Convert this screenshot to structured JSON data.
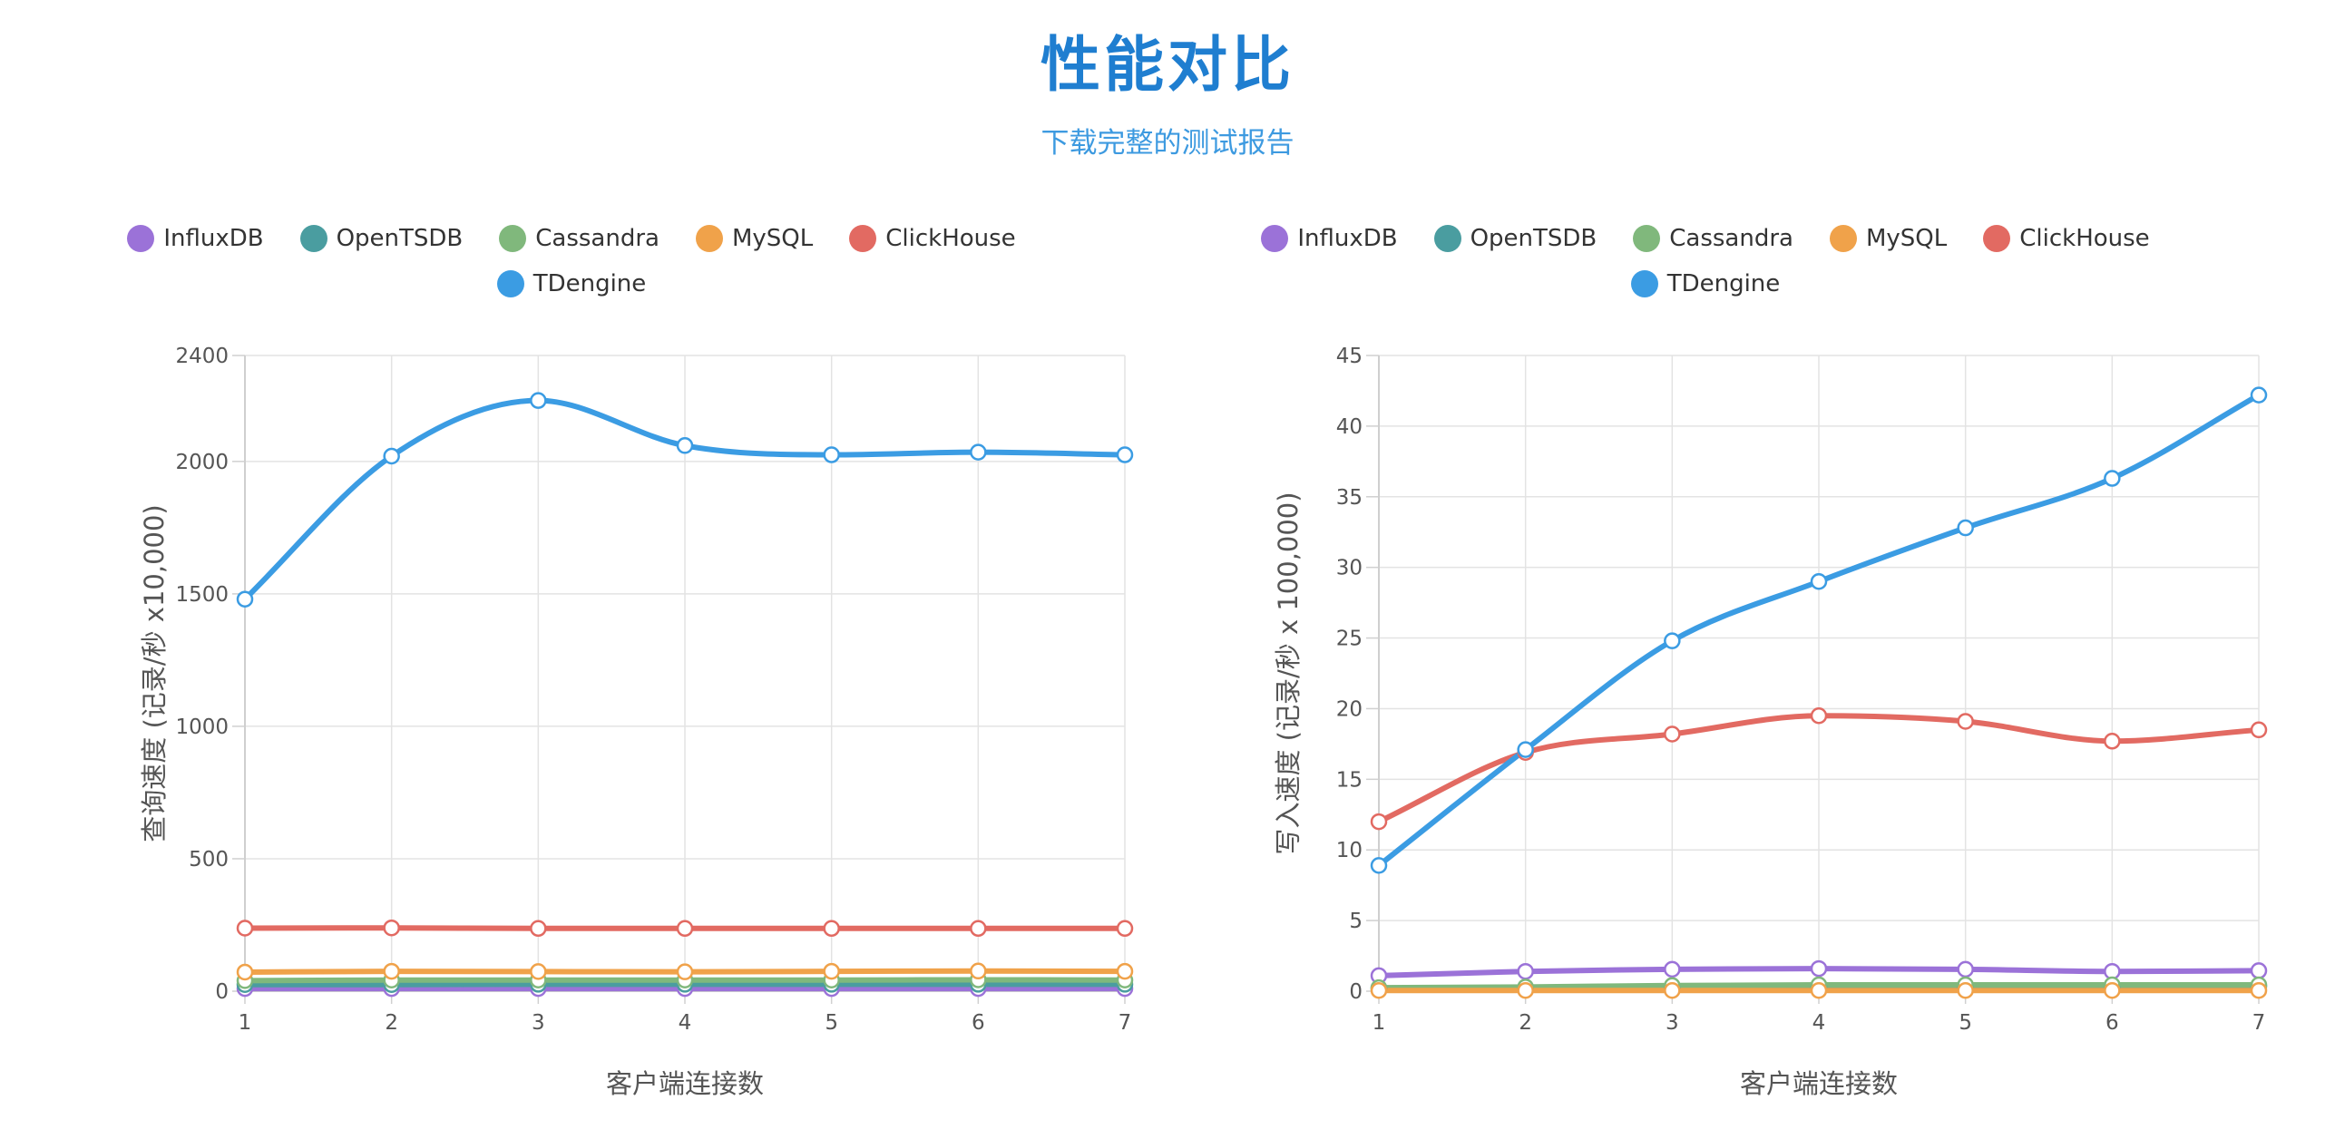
{
  "header": {
    "title": "性能对比",
    "report_link": "下载完整的测试报告"
  },
  "legend": [
    {
      "name": "InfluxDB",
      "color": "#9b72d8"
    },
    {
      "name": "OpenTSDB",
      "color": "#4a9da0"
    },
    {
      "name": "Cassandra",
      "color": "#80b87c"
    },
    {
      "name": "MySQL",
      "color": "#f0a24a"
    },
    {
      "name": "ClickHouse",
      "color": "#e26a62"
    },
    {
      "name": "TDengine",
      "color": "#3b9ce3"
    }
  ],
  "chart_data": [
    {
      "type": "line",
      "xlabel": "客户端连接数",
      "ylabel": "查询速度 (记录/秒 x10,000)",
      "x": [
        1,
        2,
        3,
        4,
        5,
        6,
        7
      ],
      "ylim": [
        0,
        2400
      ],
      "yticks": [
        0,
        500,
        1000,
        1500,
        2000,
        2400
      ],
      "grid": true,
      "legend_position": "top",
      "series": [
        {
          "name": "InfluxDB",
          "color": "#9b72d8",
          "values": [
            10,
            10,
            10,
            10,
            10,
            10,
            10
          ]
        },
        {
          "name": "OpenTSDB",
          "color": "#4a9da0",
          "values": [
            25,
            25,
            26,
            26,
            26,
            26,
            26
          ]
        },
        {
          "name": "Cassandra",
          "color": "#80b87c",
          "values": [
            40,
            42,
            42,
            42,
            42,
            43,
            42
          ]
        },
        {
          "name": "MySQL",
          "color": "#f0a24a",
          "values": [
            72,
            75,
            74,
            73,
            75,
            76,
            75
          ]
        },
        {
          "name": "ClickHouse",
          "color": "#e26a62",
          "values": [
            238,
            239,
            237,
            237,
            237,
            237,
            237
          ]
        },
        {
          "name": "TDengine",
          "color": "#3b9ce3",
          "values": [
            1480,
            2020,
            2230,
            2060,
            2025,
            2035,
            2025
          ]
        }
      ]
    },
    {
      "type": "line",
      "xlabel": "客户端连接数",
      "ylabel": "写入速度 (记录/秒 x 100,000)",
      "x": [
        1,
        2,
        3,
        4,
        5,
        6,
        7
      ],
      "ylim": [
        0,
        45
      ],
      "yticks": [
        0,
        5,
        10,
        15,
        20,
        25,
        30,
        35,
        40,
        45
      ],
      "grid": true,
      "legend_position": "top",
      "series": [
        {
          "name": "InfluxDB",
          "color": "#9b72d8",
          "values": [
            1.1,
            1.4,
            1.55,
            1.6,
            1.55,
            1.4,
            1.45
          ]
        },
        {
          "name": "OpenTSDB",
          "color": "#4a9da0",
          "values": [
            0.2,
            0.25,
            0.3,
            0.35,
            0.35,
            0.35,
            0.35
          ]
        },
        {
          "name": "Cassandra",
          "color": "#80b87c",
          "values": [
            0.25,
            0.3,
            0.4,
            0.45,
            0.45,
            0.45,
            0.45
          ]
        },
        {
          "name": "MySQL",
          "color": "#f0a24a",
          "values": [
            0.05,
            0.05,
            0.05,
            0.05,
            0.05,
            0.05,
            0.05
          ]
        },
        {
          "name": "ClickHouse",
          "color": "#e26a62",
          "values": [
            12.0,
            16.9,
            18.2,
            19.5,
            19.1,
            17.7,
            18.5
          ]
        },
        {
          "name": "TDengine",
          "color": "#3b9ce3",
          "values": [
            8.9,
            17.1,
            24.8,
            29.0,
            32.8,
            36.3,
            42.2
          ]
        }
      ]
    }
  ]
}
